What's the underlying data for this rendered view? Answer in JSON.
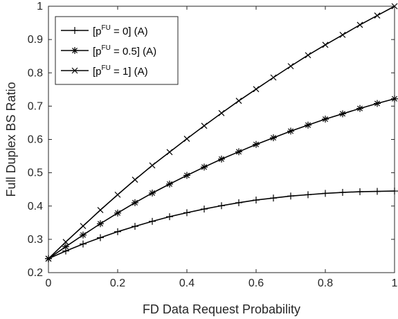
{
  "chart_data": {
    "type": "line",
    "xlabel": "FD Data Request Probability",
    "ylabel": "Full Duplex BS Ratio",
    "xlim": [
      0,
      1
    ],
    "ylim": [
      0.2,
      1
    ],
    "xticks": [
      "0",
      "0.2",
      "0.4",
      "0.6",
      "0.8",
      "1"
    ],
    "yticks": [
      "0.2",
      "0.3",
      "0.4",
      "0.5",
      "0.6",
      "0.7",
      "0.8",
      "0.9",
      "1"
    ],
    "grid": false,
    "legend_position": "top-left",
    "x": [
      0,
      0.05,
      0.1,
      0.15,
      0.2,
      0.25,
      0.3,
      0.35,
      0.4,
      0.45,
      0.5,
      0.55,
      0.6,
      0.65,
      0.7,
      0.75,
      0.8,
      0.85,
      0.9,
      0.95,
      1.0
    ],
    "series": [
      {
        "legend": {
          "pre": "[p",
          "sup": "FU",
          "post": " = 0] (A)"
        },
        "marker": "plus",
        "color": "#000000",
        "values": [
          0.242,
          0.265,
          0.286,
          0.305,
          0.323,
          0.339,
          0.354,
          0.368,
          0.38,
          0.391,
          0.401,
          0.41,
          0.418,
          0.424,
          0.43,
          0.434,
          0.438,
          0.441,
          0.443,
          0.444,
          0.445
        ]
      },
      {
        "legend": {
          "pre": "[p",
          "sup": "FU",
          "post": " = 0.5] (A)"
        },
        "marker": "star",
        "color": "#000000",
        "values": [
          0.242,
          0.278,
          0.313,
          0.347,
          0.379,
          0.41,
          0.439,
          0.466,
          0.492,
          0.517,
          0.541,
          0.563,
          0.585,
          0.605,
          0.625,
          0.643,
          0.661,
          0.677,
          0.693,
          0.708,
          0.722
        ]
      },
      {
        "legend": {
          "pre": "[p",
          "sup": "FU",
          "post": " = 1] (A)"
        },
        "marker": "x",
        "color": "#000000",
        "values": [
          0.242,
          0.292,
          0.34,
          0.388,
          0.434,
          0.479,
          0.522,
          0.562,
          0.602,
          0.641,
          0.679,
          0.716,
          0.751,
          0.786,
          0.82,
          0.853,
          0.884,
          0.914,
          0.944,
          0.972,
          1.0
        ]
      }
    ]
  }
}
